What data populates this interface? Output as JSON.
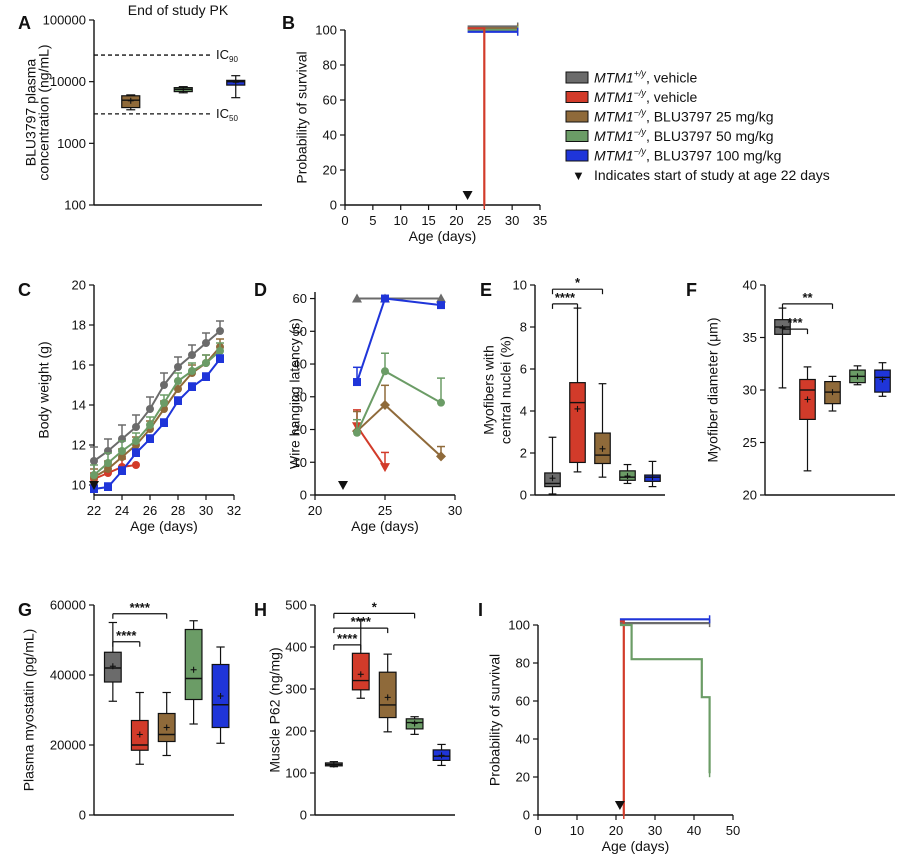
{
  "colors": {
    "gray": "#6b6b6b",
    "red": "#d23b2a",
    "brown": "#8f6a3a",
    "green": "#6b9c66",
    "blue": "#1f35d9"
  },
  "legend": {
    "items": [
      {
        "gene": "MTM1",
        "sup": "+/y",
        "rest": ", vehicle",
        "color": "#6b6b6b"
      },
      {
        "gene": "MTM1",
        "sup": "−/y",
        "rest": ", vehicle",
        "color": "#d23b2a"
      },
      {
        "gene": "MTM1",
        "sup": "−/y",
        "rest": ", BLU3797 25 mg/kg",
        "color": "#8f6a3a"
      },
      {
        "gene": "MTM1",
        "sup": "−/y",
        "rest": ", BLU3797 50 mg/kg",
        "color": "#6b9c66"
      },
      {
        "gene": "MTM1",
        "sup": "−/y",
        "rest": ", BLU3797 100 mg/kg",
        "color": "#1f35d9"
      }
    ],
    "arrow_symbol": "▼",
    "arrow_note": "Indicates start of study at age 22 days"
  },
  "chart_data": [
    {
      "panel": "A",
      "type": "box",
      "title": "End of study PK",
      "ylabel": [
        "BLU3797 plasma",
        "concentration (ng/mL)"
      ],
      "yscale": "log",
      "ylim": [
        100,
        100000
      ],
      "yticks": [
        "100",
        "1000",
        "10000",
        "100000"
      ],
      "ref_lines": [
        {
          "label": "IC",
          "sub": "90",
          "value": 27000
        },
        {
          "label": "IC",
          "sub": "50",
          "value": 3000
        }
      ],
      "boxes": [
        {
          "group": "25 mg/kg",
          "color": "#8f6a3a",
          "min": 3500,
          "q1": 3800,
          "median": 5000,
          "q3": 5900,
          "max": 6100,
          "mean": 4900
        },
        {
          "group": "50 mg/kg",
          "color": "#6b9c66",
          "min": 6600,
          "q1": 6900,
          "median": 7500,
          "q3": 8000,
          "max": 8300,
          "mean": 7500
        },
        {
          "group": "100 mg/kg",
          "color": "#1f35d9",
          "min": 5500,
          "q1": 8800,
          "median": 10000,
          "q3": 10500,
          "max": 12500,
          "mean": 9800
        }
      ]
    },
    {
      "panel": "B",
      "type": "line",
      "xlabel": "Age (days)",
      "ylabel": "Probability of survival",
      "xlim": [
        0,
        35
      ],
      "ylim": [
        0,
        100
      ],
      "xticks": [
        0,
        5,
        10,
        15,
        20,
        25,
        30,
        35
      ],
      "yticks": [
        0,
        20,
        40,
        60,
        80,
        100
      ],
      "arrow_at": 22,
      "series": [
        {
          "color": "#6b6b6b",
          "x": [
            22,
            31
          ],
          "y": [
            102,
            102
          ]
        },
        {
          "color": "#8f6a3a",
          "x": [
            22,
            31
          ],
          "y": [
            101,
            101
          ]
        },
        {
          "color": "#6b9c66",
          "x": [
            22,
            31
          ],
          "y": [
            100,
            100
          ]
        },
        {
          "color": "#1f35d9",
          "x": [
            22,
            31
          ],
          "y": [
            99,
            99
          ]
        },
        {
          "color": "#d23b2a",
          "x": [
            22,
            25,
            25
          ],
          "y": [
            101,
            101,
            0
          ]
        }
      ]
    },
    {
      "panel": "C",
      "type": "line",
      "xlabel": "Age (days)",
      "ylabel": "Body weight (g)",
      "xlim": [
        22,
        32
      ],
      "ylim": [
        9.5,
        20
      ],
      "xticks": [
        22,
        24,
        26,
        28,
        30,
        32
      ],
      "yticks": [
        10,
        12,
        14,
        16,
        18,
        20
      ],
      "arrow_at": 22,
      "series": [
        {
          "color": "#6b6b6b",
          "marker": "circle",
          "x": [
            22,
            23,
            24,
            25,
            26,
            27,
            28,
            29,
            30,
            31
          ],
          "y": [
            11.2,
            11.7,
            12.3,
            12.9,
            13.8,
            15.0,
            15.9,
            16.5,
            17.1,
            17.7
          ],
          "err": [
            0.7,
            0.6,
            0.7,
            0.6,
            0.6,
            0.6,
            0.5,
            0.5,
            0.5,
            0.5
          ]
        },
        {
          "color": "#d23b2a",
          "marker": "circle",
          "x": [
            22,
            23,
            24,
            25
          ],
          "y": [
            10.3,
            10.6,
            10.9,
            11.0
          ],
          "err": [
            0.3,
            0.4,
            0.4,
            0
          ]
        },
        {
          "color": "#8f6a3a",
          "marker": "circle",
          "x": [
            22,
            23,
            24,
            25,
            26,
            27,
            28,
            29,
            30,
            31
          ],
          "y": [
            10.4,
            10.8,
            11.4,
            12.0,
            12.8,
            13.8,
            14.8,
            15.6,
            16.1,
            16.9
          ],
          "err": [
            0.4,
            0.4,
            0.4,
            0.4,
            0.4,
            0.4,
            0.4,
            0.4,
            0.4,
            0.4
          ]
        },
        {
          "color": "#6b9c66",
          "marker": "circle",
          "x": [
            22,
            23,
            24,
            25,
            26,
            27,
            28,
            29,
            30,
            31
          ],
          "y": [
            10.5,
            11.1,
            11.7,
            12.2,
            13.0,
            14.1,
            15.2,
            15.7,
            16.1,
            16.7
          ],
          "err": [
            0.5,
            0.5,
            0.5,
            0.4,
            0.4,
            0.4,
            0.4,
            0.4,
            0.4,
            0.4
          ]
        },
        {
          "color": "#1f35d9",
          "marker": "square",
          "x": [
            22,
            23,
            24,
            25,
            26,
            27,
            28,
            29,
            30,
            31
          ],
          "y": [
            9.8,
            9.9,
            10.7,
            11.6,
            12.3,
            13.1,
            14.2,
            14.9,
            15.4,
            16.3
          ],
          "err": [
            0.2,
            0.2,
            0.2,
            0.2,
            0.2,
            0.2,
            0.2,
            0.2,
            0.2,
            0.2
          ]
        }
      ]
    },
    {
      "panel": "D",
      "type": "line",
      "xlabel": "Age (days)",
      "ylabel": "Wire hanging latency (s)",
      "xlim": [
        20,
        30
      ],
      "ylim": [
        0,
        62
      ],
      "xticks": [
        20,
        25,
        30
      ],
      "yticks": [
        0,
        10,
        20,
        30,
        40,
        50,
        60
      ],
      "arrow_at": 22,
      "series": [
        {
          "color": "#6b6b6b",
          "marker": "triangle",
          "x": [
            23,
            25,
            29
          ],
          "y": [
            60,
            60,
            60
          ],
          "err": [
            0,
            0,
            0
          ]
        },
        {
          "color": "#d23b2a",
          "marker": "tridown",
          "x": [
            23,
            25
          ],
          "y": [
            21,
            8.5
          ],
          "err": [
            5,
            4.5
          ]
        },
        {
          "color": "#8f6a3a",
          "marker": "diamond",
          "x": [
            23,
            25,
            29
          ],
          "y": [
            19.5,
            27.5,
            11.8
          ],
          "err": [
            6,
            6,
            3
          ]
        },
        {
          "color": "#6b9c66",
          "marker": "circle",
          "x": [
            23,
            25,
            29
          ],
          "y": [
            19,
            37.8,
            28.2
          ],
          "err": [
            4,
            5.5,
            7.5
          ]
        },
        {
          "color": "#1f35d9",
          "marker": "square",
          "x": [
            23,
            25,
            29
          ],
          "y": [
            34.5,
            60,
            58
          ],
          "err": [
            4.5,
            0,
            0
          ]
        }
      ]
    },
    {
      "panel": "E",
      "type": "box",
      "ylabel": [
        "Myofibers with",
        "central nuclei (%)"
      ],
      "ylim": [
        0,
        10
      ],
      "yticks": [
        0,
        2,
        4,
        6,
        8,
        10
      ],
      "sig": [
        {
          "label": "****",
          "a": 0,
          "b": 1,
          "y": 9.1
        },
        {
          "label": "*",
          "a": 0,
          "b": 2,
          "y": 9.8
        }
      ],
      "boxes": [
        {
          "color": "#6b6b6b",
          "min": 0.05,
          "q1": 0.4,
          "median": 0.55,
          "q3": 1.05,
          "max": 2.75,
          "mean": 0.8
        },
        {
          "color": "#d23b2a",
          "min": 1.1,
          "q1": 1.55,
          "median": 4.4,
          "q3": 5.35,
          "max": 8.9,
          "mean": 4.1
        },
        {
          "color": "#8f6a3a",
          "min": 0.85,
          "q1": 1.5,
          "median": 1.9,
          "q3": 2.95,
          "max": 5.3,
          "mean": 2.2
        },
        {
          "color": "#6b9c66",
          "min": 0.55,
          "q1": 0.7,
          "median": 0.85,
          "q3": 1.15,
          "max": 1.45,
          "mean": 0.9
        },
        {
          "color": "#1f35d9",
          "min": 0.4,
          "q1": 0.65,
          "median": 0.85,
          "q3": 0.95,
          "max": 1.6,
          "mean": 0.85
        }
      ]
    },
    {
      "panel": "F",
      "type": "box",
      "ylabel": "Myofiber diameter (μm)",
      "ylim": [
        20,
        40
      ],
      "yticks": [
        20,
        25,
        30,
        35,
        40
      ],
      "sig": [
        {
          "label": "***",
          "a": 0,
          "b": 1,
          "y": 35.8
        },
        {
          "label": "**",
          "a": 0,
          "b": 2,
          "y": 38.2
        }
      ],
      "boxes": [
        {
          "color": "#6b6b6b",
          "min": 30.2,
          "q1": 35.3,
          "median": 36.0,
          "q3": 36.7,
          "max": 37.8,
          "mean": 35.9
        },
        {
          "color": "#d23b2a",
          "min": 22.3,
          "q1": 27.2,
          "median": 30.0,
          "q3": 31.0,
          "max": 32.2,
          "mean": 29.1
        },
        {
          "color": "#8f6a3a",
          "min": 28.0,
          "q1": 28.7,
          "median": 29.8,
          "q3": 30.8,
          "max": 31.3,
          "mean": 29.8
        },
        {
          "color": "#6b9c66",
          "min": 30.5,
          "q1": 30.7,
          "median": 31.3,
          "q3": 31.9,
          "max": 32.3,
          "mean": 31.3
        },
        {
          "color": "#1f35d9",
          "min": 29.4,
          "q1": 29.8,
          "median": 31.2,
          "q3": 31.9,
          "max": 32.6,
          "mean": 31.0
        }
      ]
    },
    {
      "panel": "G",
      "type": "box",
      "ylabel": "Plasma myostatin (pg/mL)",
      "ylim": [
        0,
        60000
      ],
      "yticks": [
        0,
        20000,
        40000,
        60000
      ],
      "sig": [
        {
          "label": "****",
          "a": 0,
          "b": 1,
          "y": 49500
        },
        {
          "label": "****",
          "a": 0,
          "b": 2,
          "y": 57500
        }
      ],
      "boxes": [
        {
          "color": "#6b6b6b",
          "min": 32500,
          "q1": 38000,
          "median": 42000,
          "q3": 46500,
          "max": 55000,
          "mean": 42500
        },
        {
          "color": "#d23b2a",
          "min": 14500,
          "q1": 18500,
          "median": 20000,
          "q3": 27000,
          "max": 35000,
          "mean": 23000
        },
        {
          "color": "#8f6a3a",
          "min": 17000,
          "q1": 21000,
          "median": 23000,
          "q3": 29000,
          "max": 35000,
          "mean": 25000
        },
        {
          "color": "#6b9c66",
          "min": 26000,
          "q1": 33000,
          "median": 39000,
          "q3": 53000,
          "max": 55500,
          "mean": 41500
        },
        {
          "color": "#1f35d9",
          "min": 20500,
          "q1": 25000,
          "median": 31500,
          "q3": 43000,
          "max": 48000,
          "mean": 34000
        }
      ]
    },
    {
      "panel": "H",
      "type": "box",
      "ylabel": "Muscle P62 (ng/mg)",
      "ylim": [
        0,
        500
      ],
      "yticks": [
        0,
        100,
        200,
        300,
        400,
        500
      ],
      "sig": [
        {
          "label": "****",
          "a": 0,
          "b": 1,
          "y": 405
        },
        {
          "label": "****",
          "a": 0,
          "b": 2,
          "y": 445
        },
        {
          "label": "*",
          "a": 0,
          "b": 3,
          "y": 480
        }
      ],
      "boxes": [
        {
          "color": "#6b6b6b",
          "min": 115,
          "q1": 117,
          "median": 120,
          "q3": 124,
          "max": 127,
          "mean": 120
        },
        {
          "color": "#d23b2a",
          "min": 278,
          "q1": 298,
          "median": 320,
          "q3": 385,
          "max": 465,
          "mean": 335
        },
        {
          "color": "#8f6a3a",
          "min": 198,
          "q1": 232,
          "median": 262,
          "q3": 340,
          "max": 383,
          "mean": 280
        },
        {
          "color": "#6b9c66",
          "min": 192,
          "q1": 205,
          "median": 220,
          "q3": 229,
          "max": 234,
          "mean": 218
        },
        {
          "color": "#1f35d9",
          "min": 118,
          "q1": 130,
          "median": 140,
          "q3": 155,
          "max": 168,
          "mean": 142
        }
      ]
    },
    {
      "panel": "I",
      "type": "line",
      "xlabel": "Age (days)",
      "ylabel": "Probability of survival",
      "xlim": [
        0,
        50
      ],
      "ylim": [
        0,
        100
      ],
      "xticks": [
        0,
        10,
        20,
        30,
        40,
        50
      ],
      "yticks": [
        0,
        20,
        40,
        60,
        80,
        100
      ],
      "arrow_at": 21,
      "series": [
        {
          "color": "#6b6b6b",
          "x": [
            21,
            44
          ],
          "y": [
            101,
            101
          ]
        },
        {
          "color": "#d23b2a",
          "x": [
            21,
            22,
            22
          ],
          "y": [
            102,
            102,
            0
          ]
        },
        {
          "color": "#6b9c66",
          "x": [
            21,
            24,
            24,
            42,
            42,
            44,
            44
          ],
          "y": [
            100,
            100,
            82,
            82,
            62,
            62,
            22
          ]
        },
        {
          "color": "#1f35d9",
          "x": [
            21,
            44
          ],
          "y": [
            103,
            103
          ]
        }
      ]
    }
  ]
}
